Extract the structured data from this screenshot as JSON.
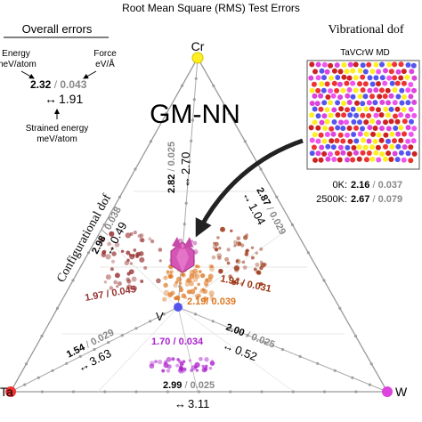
{
  "title": "Root Mean Square (RMS) Test Errors",
  "overall": {
    "header": "Overall errors",
    "energy_label_1": "Energy",
    "energy_label_2": "meV/atom",
    "force_label_1": "Force",
    "force_label_2": "eV/Å",
    "energy_value": "2.32",
    "slash": " / ",
    "force_value": "0.043",
    "strained_value": "1.91",
    "strained_label_1": "Strained energy",
    "strained_label_2": "meV/atom"
  },
  "model_name": "GM-NN",
  "vertices": {
    "top": "Cr",
    "left": "Ta",
    "right": "W",
    "center": "V"
  },
  "vibrational": {
    "header": "Vibrational dof",
    "system": "TaVCrW MD",
    "row1_label": "0K:",
    "row1_energy": "2.16",
    "row1_force": "0.037",
    "row2_label": "2500K:",
    "row2_energy": "2.67",
    "row2_force": "0.079"
  },
  "configurational_label": "Configurational dof",
  "edges": {
    "cr_v": {
      "energy": "2.82",
      "force": "0.025",
      "strained": "2.70"
    },
    "ta_cr": {
      "energy": "2.98",
      "force": "0.038",
      "strained": "0.49"
    },
    "cr_w": {
      "energy": "2.87",
      "force": "0.029",
      "strained": "1.04"
    },
    "ta_v": {
      "energy": "1.54",
      "force": "0.029",
      "strained": "3.63"
    },
    "v_w": {
      "energy": "2.00",
      "force": "0.025",
      "strained": "0.52"
    },
    "ta_w": {
      "energy": "2.99",
      "force": "0.025",
      "strained": "3.11"
    }
  },
  "regions": {
    "ta_cr_v": "1.97 / 0.045",
    "cr_v_w": "1.94 / 0.031",
    "center": "2.19/ 0.039",
    "ta_v_w": "1.70 / 0.034"
  },
  "arrow_symbol": "↔",
  "colors": {
    "energy": "#000000",
    "force": "#888888",
    "cr": "#ffee22",
    "ta": "#ee3333",
    "w": "#dd44dd",
    "v": "#5555ee",
    "left_region": "#993333",
    "right_region": "#993311",
    "center_region": "#dd7722",
    "bottom_region": "#aa22cc"
  }
}
